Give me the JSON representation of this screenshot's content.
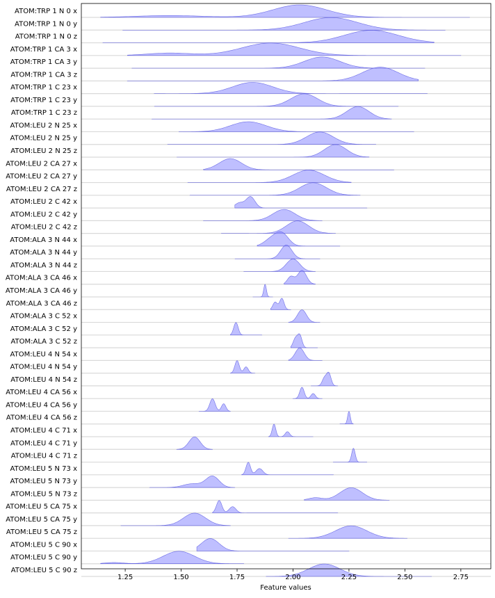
{
  "chart_data": {
    "type": "ridgeline",
    "xlabel": "Feature values",
    "color": "#8080ff",
    "xlim": [
      1.054,
      2.884
    ],
    "xticks": [
      1.25,
      {
        "value": 1.5,
        "label": "1.50"
      },
      1.75,
      {
        "value": 2.0,
        "label": "2.00"
      },
      2.25,
      {
        "value": 2.5,
        "label": "2.50"
      },
      2.75
    ],
    "categories": [
      "ATOM:TRP 1 N 0 x",
      "ATOM:TRP 1 N 0 y",
      "ATOM:TRP 1 N 0 z",
      "ATOM:TRP 1 CA 3 x",
      "ATOM:TRP 1 CA 3 y",
      "ATOM:TRP 1 CA 3 z",
      "ATOM:TRP 1 C 23 x",
      "ATOM:TRP 1 C 23 y",
      "ATOM:TRP 1 C 23 z",
      "ATOM:LEU 2 N 25 x",
      "ATOM:LEU 2 N 25 y",
      "ATOM:LEU 2 N 25 z",
      "ATOM:LEU 2 CA 27 x",
      "ATOM:LEU 2 CA 27 y",
      "ATOM:LEU 2 CA 27 z",
      "ATOM:LEU 2 C 42 x",
      "ATOM:LEU 2 C 42 y",
      "ATOM:LEU 2 C 42 z",
      "ATOM:ALA 3 N 44 x",
      "ATOM:ALA 3 N 44 y",
      "ATOM:ALA 3 N 44 z",
      "ATOM:ALA 3 CA 46 x",
      "ATOM:ALA 3 CA 46 y",
      "ATOM:ALA 3 CA 46 z",
      "ATOM:ALA 3 C 52 x",
      "ATOM:ALA 3 C 52 y",
      "ATOM:ALA 3 C 52 z",
      "ATOM:LEU 4 N 54 x",
      "ATOM:LEU 4 N 54 y",
      "ATOM:LEU 4 N 54 z",
      "ATOM:LEU 4 CA 56 x",
      "ATOM:LEU 4 CA 56 y",
      "ATOM:LEU 4 CA 56 z",
      "ATOM:LEU 4 C 71 x",
      "ATOM:LEU 4 C 71 y",
      "ATOM:LEU 4 C 71 z",
      "ATOM:LEU 5 N 73 x",
      "ATOM:LEU 5 N 73 y",
      "ATOM:LEU 5 N 73 z",
      "ATOM:LEU 5 CA 75 x",
      "ATOM:LEU 5 CA 75 y",
      "ATOM:LEU 5 CA 75 z",
      "ATOM:LEU 5 C 90 x",
      "ATOM:LEU 5 C 90 y",
      "ATOM:LEU 5 C 90 z"
    ],
    "ridges": [
      {
        "range": [
          1.14,
          2.79
        ],
        "peaks": [
          [
            2.03,
            1.0,
            0.12
          ],
          [
            1.45,
            0.15,
            0.15
          ]
        ]
      },
      {
        "range": [
          1.24,
          2.68
        ],
        "peaks": [
          [
            2.17,
            1.0,
            0.12
          ]
        ]
      },
      {
        "range": [
          1.15,
          2.63
        ],
        "peaks": [
          [
            2.35,
            1.0,
            0.12
          ]
        ]
      },
      {
        "range": [
          1.26,
          2.75
        ],
        "peaks": [
          [
            1.9,
            1.0,
            0.13
          ],
          [
            1.45,
            0.2,
            0.1
          ]
        ]
      },
      {
        "range": [
          1.28,
          2.59
        ],
        "peaks": [
          [
            2.13,
            0.9,
            0.08
          ]
        ]
      },
      {
        "range": [
          1.26,
          2.56
        ],
        "peaks": [
          [
            2.39,
            1.1,
            0.08
          ]
        ]
      },
      {
        "range": [
          1.38,
          2.6
        ],
        "peaks": [
          [
            1.82,
            0.9,
            0.09
          ]
        ]
      },
      {
        "range": [
          1.38,
          2.47
        ],
        "peaks": [
          [
            2.05,
            1.0,
            0.06
          ]
        ]
      },
      {
        "range": [
          1.37,
          2.44
        ],
        "peaks": [
          [
            2.29,
            1.0,
            0.05
          ]
        ]
      },
      {
        "range": [
          1.49,
          2.54
        ],
        "peaks": [
          [
            1.8,
            0.8,
            0.08
          ]
        ]
      },
      {
        "range": [
          1.44,
          2.37
        ],
        "peaks": [
          [
            2.12,
            1.0,
            0.06
          ]
        ]
      },
      {
        "range": [
          1.48,
          2.34
        ],
        "peaks": [
          [
            2.19,
            1.0,
            0.05
          ]
        ]
      },
      {
        "range": [
          1.6,
          2.45
        ],
        "peaks": [
          [
            1.72,
            0.9,
            0.05
          ]
        ]
      },
      {
        "range": [
          1.53,
          2.26
        ],
        "peaks": [
          [
            2.07,
            1.0,
            0.07
          ]
        ]
      },
      {
        "range": [
          1.54,
          2.3
        ],
        "peaks": [
          [
            2.09,
            1.0,
            0.06
          ]
        ]
      },
      {
        "range": [
          1.74,
          2.33
        ],
        "peaks": [
          [
            1.81,
            0.9,
            0.02
          ],
          [
            1.76,
            0.4,
            0.02
          ]
        ]
      },
      {
        "range": [
          1.6,
          2.13
        ],
        "peaks": [
          [
            1.96,
            0.9,
            0.05
          ]
        ]
      },
      {
        "range": [
          1.68,
          2.19
        ],
        "peaks": [
          [
            2.02,
            1.0,
            0.05
          ]
        ]
      },
      {
        "range": [
          1.84,
          2.21
        ],
        "peaks": [
          [
            1.95,
            1.0,
            0.03
          ],
          [
            1.9,
            0.5,
            0.03
          ]
        ]
      },
      {
        "range": [
          1.74,
          2.12
        ],
        "peaks": [
          [
            1.97,
            1.1,
            0.025
          ]
        ]
      },
      {
        "range": [
          1.78,
          2.1
        ],
        "peaks": [
          [
            2.0,
            1.0,
            0.03
          ]
        ]
      },
      {
        "range": [
          1.96,
          2.1
        ],
        "peaks": [
          [
            2.04,
            1.1,
            0.02
          ],
          [
            1.99,
            0.6,
            0.015
          ]
        ]
      },
      {
        "range": [
          1.82,
          1.91
        ],
        "peaks": [
          [
            1.875,
            1.0,
            0.006
          ]
        ]
      },
      {
        "range": [
          1.9,
          1.99
        ],
        "peaks": [
          [
            1.95,
            0.9,
            0.01
          ],
          [
            1.92,
            0.6,
            0.01
          ]
        ]
      },
      {
        "range": [
          1.98,
          2.12
        ],
        "peaks": [
          [
            2.04,
            1.0,
            0.02
          ]
        ]
      },
      {
        "range": [
          1.72,
          1.86
        ],
        "peaks": [
          [
            1.745,
            1.0,
            0.01
          ]
        ]
      },
      {
        "range": [
          1.99,
          2.11
        ],
        "peaks": [
          [
            2.03,
            1.0,
            0.01
          ],
          [
            2.01,
            0.7,
            0.01
          ]
        ]
      },
      {
        "range": [
          1.98,
          2.13
        ],
        "peaks": [
          [
            2.03,
            1.0,
            0.02
          ]
        ]
      },
      {
        "range": [
          1.72,
          1.83
        ],
        "peaks": [
          [
            1.75,
            1.0,
            0.01
          ],
          [
            1.79,
            0.5,
            0.01
          ]
        ]
      },
      {
        "range": [
          2.08,
          2.2
        ],
        "peaks": [
          [
            2.16,
            1.0,
            0.01
          ],
          [
            2.14,
            0.6,
            0.01
          ]
        ]
      },
      {
        "range": [
          2.0,
          2.13
        ],
        "peaks": [
          [
            2.04,
            0.9,
            0.01
          ],
          [
            2.09,
            0.4,
            0.01
          ]
        ]
      },
      {
        "range": [
          1.58,
          1.72
        ],
        "peaks": [
          [
            1.64,
            1.0,
            0.012
          ],
          [
            1.69,
            0.6,
            0.01
          ]
        ]
      },
      {
        "range": [
          2.21,
          2.27
        ],
        "peaks": [
          [
            2.25,
            1.0,
            0.006
          ]
        ]
      },
      {
        "range": [
          1.89,
          2.09
        ],
        "peaks": [
          [
            1.915,
            1.0,
            0.008
          ],
          [
            1.975,
            0.4,
            0.01
          ]
        ]
      },
      {
        "range": [
          1.48,
          1.64
        ],
        "peaks": [
          [
            1.56,
            1.0,
            0.025
          ]
        ]
      },
      {
        "range": [
          2.18,
          2.33
        ],
        "peaks": [
          [
            2.27,
            1.1,
            0.008
          ]
        ]
      },
      {
        "range": [
          1.77,
          2.18
        ],
        "peaks": [
          [
            1.8,
            1.0,
            0.01
          ],
          [
            1.85,
            0.5,
            0.015
          ]
        ]
      },
      {
        "range": [
          1.36,
          1.74
        ],
        "peaks": [
          [
            1.64,
            0.9,
            0.03
          ],
          [
            1.55,
            0.3,
            0.04
          ]
        ]
      },
      {
        "range": [
          2.05,
          2.43
        ],
        "peaks": [
          [
            2.26,
            1.0,
            0.05
          ],
          [
            2.1,
            0.2,
            0.03
          ]
        ]
      },
      {
        "range": [
          1.64,
          2.2
        ],
        "peaks": [
          [
            1.67,
            1.0,
            0.012
          ],
          [
            1.73,
            0.5,
            0.015
          ]
        ]
      },
      {
        "range": [
          1.23,
          1.72
        ],
        "peaks": [
          [
            1.56,
            1.0,
            0.05
          ]
        ]
      },
      {
        "range": [
          1.98,
          2.51
        ],
        "peaks": [
          [
            2.26,
            1.0,
            0.07
          ]
        ]
      },
      {
        "range": [
          1.57,
          2.25
        ],
        "peaks": [
          [
            1.63,
            1.0,
            0.04
          ]
        ]
      },
      {
        "range": [
          1.14,
          1.78
        ],
        "peaks": [
          [
            1.49,
            1.0,
            0.07
          ],
          [
            1.2,
            0.1,
            0.04
          ]
        ]
      },
      {
        "range": [
          1.88,
          2.62
        ],
        "peaks": [
          [
            2.14,
            1.0,
            0.07
          ]
        ]
      }
    ]
  }
}
